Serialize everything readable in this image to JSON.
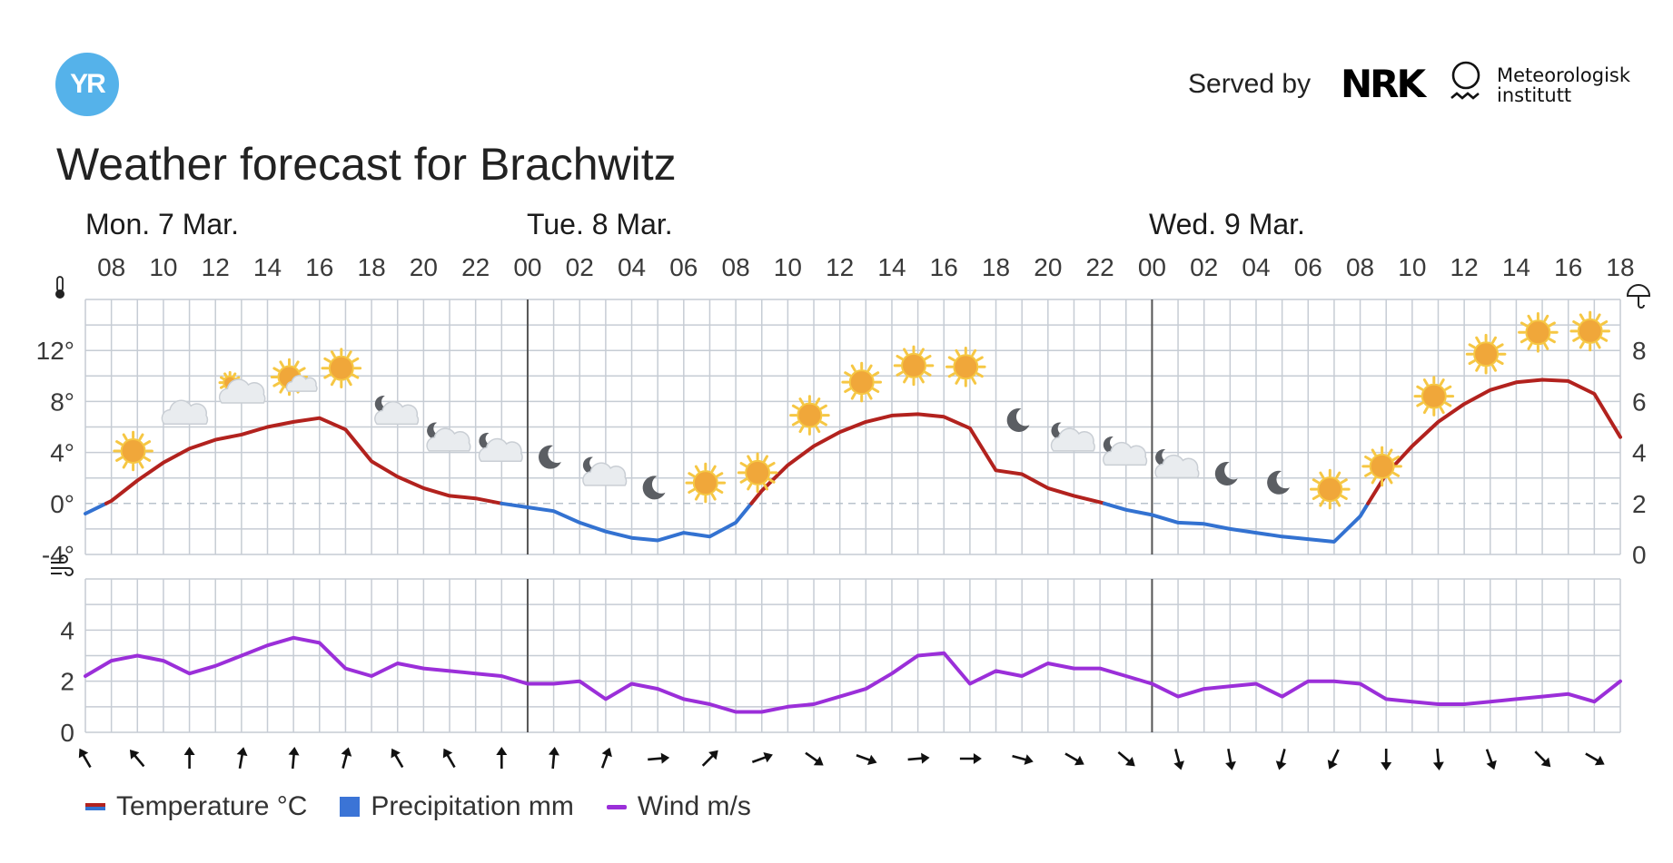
{
  "header": {
    "logo_text": "YR",
    "served_by": "Served by",
    "nrk_logo": "NRK",
    "met_line1": "Meteorologisk",
    "met_line2": "institutt",
    "title": "Weather forecast for Brachwitz"
  },
  "legend": {
    "temperature": "Temperature °C",
    "precipitation": "Precipitation mm",
    "wind": "Wind m/s"
  },
  "colors": {
    "temp_warm": "#b2221e",
    "temp_cold": "#3372d1",
    "precip": "#3b74d6",
    "wind": "#9b2fd9",
    "grid": "#c6ccd4",
    "day_divider": "#555555"
  },
  "icons": {
    "temperature_axis": "thermometer-icon",
    "precip_axis": "umbrella-icon",
    "wind_axis": "wind-icon"
  },
  "chart_data": {
    "type": "line",
    "days": [
      {
        "label": "Mon. 7 Mar.",
        "start_hour": 7
      },
      {
        "label": "Tue. 8 Mar.",
        "start_hour": 24
      },
      {
        "label": "Wed. 9 Mar.",
        "start_hour": 48
      }
    ],
    "x_hours_range": [
      7,
      66
    ],
    "x_tick_labels": [
      "08",
      "10",
      "12",
      "14",
      "16",
      "18",
      "20",
      "22",
      "00",
      "02",
      "04",
      "06",
      "08",
      "10",
      "12",
      "14",
      "16",
      "18",
      "20",
      "22",
      "00",
      "02",
      "04",
      "06",
      "08",
      "10",
      "12",
      "14",
      "16",
      "18"
    ],
    "temperature": {
      "unit": "°C",
      "ylim": [
        -4,
        16
      ],
      "ticks": [
        -4,
        0,
        4,
        8,
        12
      ],
      "tick_labels": [
        "-4°",
        "0°",
        "4°",
        "8°",
        "12°"
      ],
      "hours": [
        7,
        8,
        9,
        10,
        11,
        12,
        13,
        14,
        15,
        16,
        17,
        18,
        19,
        20,
        21,
        22,
        23,
        24,
        25,
        26,
        27,
        28,
        29,
        30,
        31,
        32,
        33,
        34,
        35,
        36,
        37,
        38,
        39,
        40,
        41,
        42,
        43,
        44,
        45,
        46,
        47,
        48,
        49,
        50,
        51,
        52,
        53,
        54,
        55,
        56,
        57,
        58,
        59,
        60,
        61,
        62,
        63,
        64,
        65,
        66
      ],
      "values": [
        -0.8,
        0.2,
        1.8,
        3.2,
        4.3,
        5.0,
        5.4,
        6.0,
        6.4,
        6.7,
        5.8,
        3.3,
        2.1,
        1.2,
        0.6,
        0.4,
        0.0,
        -0.3,
        -0.6,
        -1.5,
        -2.2,
        -2.7,
        -2.9,
        -2.3,
        -2.6,
        -1.5,
        1.0,
        3.0,
        4.5,
        5.6,
        6.4,
        6.9,
        7.0,
        6.8,
        5.9,
        2.6,
        2.3,
        1.2,
        0.6,
        0.1,
        -0.5,
        -0.9,
        -1.5,
        -1.6,
        -2.0,
        -2.3,
        -2.6,
        -2.8,
        -3.0,
        -1.0,
        2.3,
        4.5,
        6.4,
        7.8,
        8.9,
        9.5,
        9.7,
        9.6,
        8.6,
        5.2
      ]
    },
    "precipitation": {
      "unit": "mm",
      "ylim": [
        0,
        10
      ],
      "ticks": [
        0,
        2,
        4,
        6,
        8
      ],
      "tick_labels": [
        "0",
        "2",
        "4",
        "6",
        "8"
      ],
      "values": []
    },
    "wind": {
      "unit": "m/s",
      "ylim": [
        0,
        6
      ],
      "ticks": [
        0,
        2,
        4
      ],
      "tick_labels": [
        "0",
        "2",
        "4"
      ],
      "hours": [
        7,
        8,
        9,
        10,
        11,
        12,
        13,
        14,
        15,
        16,
        17,
        18,
        19,
        20,
        21,
        22,
        23,
        24,
        25,
        26,
        27,
        28,
        29,
        30,
        31,
        32,
        33,
        34,
        35,
        36,
        37,
        38,
        39,
        40,
        41,
        42,
        43,
        44,
        45,
        46,
        47,
        48,
        49,
        50,
        51,
        52,
        53,
        54,
        55,
        56,
        57,
        58,
        59,
        60,
        61,
        62,
        63,
        64,
        65,
        66
      ],
      "values": [
        2.2,
        2.8,
        3.0,
        2.8,
        2.3,
        2.6,
        3.0,
        3.4,
        3.7,
        3.5,
        2.5,
        2.2,
        2.7,
        2.5,
        2.4,
        2.3,
        2.2,
        1.9,
        1.9,
        2.0,
        1.3,
        1.9,
        1.7,
        1.3,
        1.1,
        0.8,
        0.8,
        1.0,
        1.1,
        1.4,
        1.7,
        2.3,
        3.0,
        3.1,
        1.9,
        2.4,
        2.2,
        2.7,
        2.5,
        2.5,
        2.2,
        1.9,
        1.4,
        1.7,
        1.8,
        1.9,
        1.4,
        2.0,
        2.0,
        1.9,
        1.3,
        1.2,
        1.1,
        1.1,
        1.2,
        1.3,
        1.4,
        1.5,
        1.2,
        2.0
      ]
    },
    "symbols": [
      {
        "hour": 8,
        "icon": "sun"
      },
      {
        "hour": 10,
        "icon": "cloud"
      },
      {
        "hour": 12,
        "icon": "cloud-sun"
      },
      {
        "hour": 14,
        "icon": "sun-cloud"
      },
      {
        "hour": 16,
        "icon": "sun"
      },
      {
        "hour": 18,
        "icon": "moon-cloud"
      },
      {
        "hour": 20,
        "icon": "moon-cloud"
      },
      {
        "hour": 22,
        "icon": "moon-cloud"
      },
      {
        "hour": 24,
        "icon": "moon"
      },
      {
        "hour": 26,
        "icon": "moon-cloud"
      },
      {
        "hour": 28,
        "icon": "moon"
      },
      {
        "hour": 30,
        "icon": "sun"
      },
      {
        "hour": 32,
        "icon": "sun"
      },
      {
        "hour": 34,
        "icon": "sun"
      },
      {
        "hour": 36,
        "icon": "sun"
      },
      {
        "hour": 38,
        "icon": "sun"
      },
      {
        "hour": 40,
        "icon": "sun"
      },
      {
        "hour": 42,
        "icon": "moon"
      },
      {
        "hour": 44,
        "icon": "moon-cloud"
      },
      {
        "hour": 46,
        "icon": "moon-cloud"
      },
      {
        "hour": 48,
        "icon": "moon-cloud"
      },
      {
        "hour": 50,
        "icon": "moon"
      },
      {
        "hour": 52,
        "icon": "moon"
      },
      {
        "hour": 54,
        "icon": "sun"
      },
      {
        "hour": 56,
        "icon": "sun"
      },
      {
        "hour": 58,
        "icon": "sun"
      },
      {
        "hour": 60,
        "icon": "sun"
      },
      {
        "hour": 62,
        "icon": "sun"
      },
      {
        "hour": 64,
        "icon": "sun"
      }
    ],
    "wind_directions": {
      "hours": [
        7,
        9,
        11,
        13,
        15,
        17,
        19,
        21,
        23,
        25,
        27,
        29,
        31,
        33,
        35,
        37,
        39,
        41,
        43,
        45,
        47,
        49,
        51,
        53,
        55,
        57,
        59,
        61,
        63,
        65
      ],
      "rotation_deg": [
        150,
        140,
        180,
        190,
        185,
        195,
        150,
        150,
        180,
        185,
        200,
        265,
        225,
        250,
        305,
        290,
        265,
        270,
        285,
        300,
        310,
        345,
        350,
        15,
        25,
        0,
        355,
        340,
        315,
        300
      ]
    }
  }
}
